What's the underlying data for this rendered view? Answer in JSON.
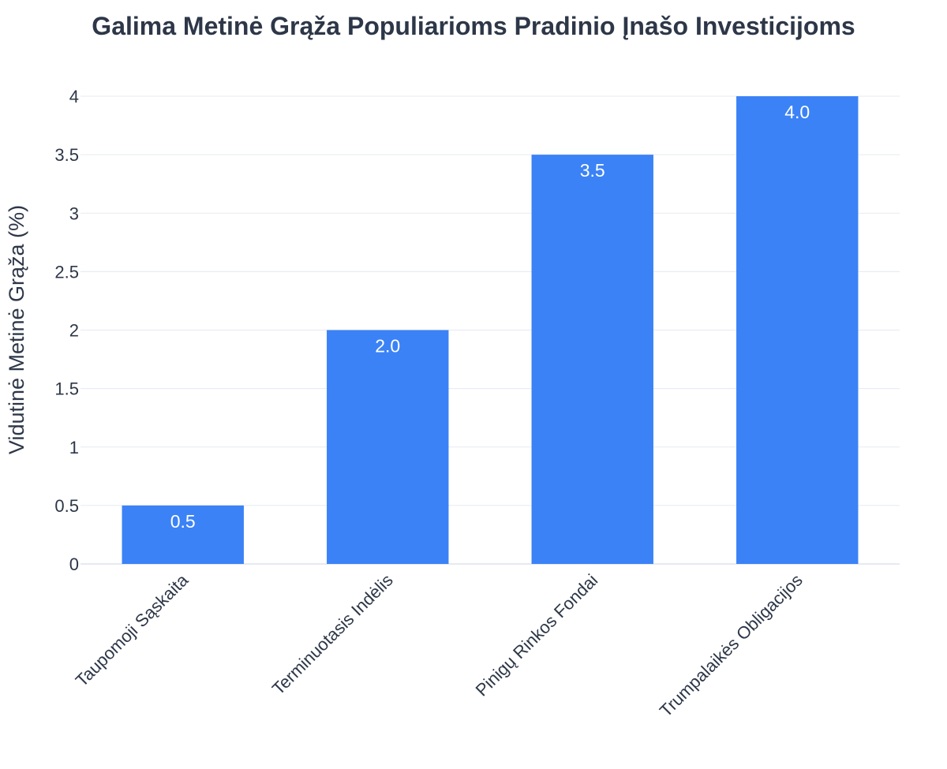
{
  "chart_data": {
    "type": "bar",
    "title": "Galima Metinė Grąža Populiarioms Pradinio Įnašo Investicijoms",
    "xlabel": "",
    "ylabel": "Vidutinė Metinė Grąža (%)",
    "categories": [
      "Taupomoji Sąskaita",
      "Terminuotasis Indėlis",
      "Pinigų Rinkos Fondai",
      "Trumpalaikės Obligacijos"
    ],
    "values": [
      0.5,
      2.0,
      3.5,
      4.0
    ],
    "data_labels": [
      "0.5",
      "2.0",
      "3.5",
      "4.0"
    ],
    "ylim": [
      0,
      4
    ],
    "yticks": [
      "0",
      "0.5",
      "1",
      "1.5",
      "2",
      "2.5",
      "3",
      "3.5",
      "4"
    ],
    "grid": true,
    "legend": "none",
    "colors": {
      "bar": "#3b82f6",
      "grid": "#e5eaf2",
      "text": "#2d3748"
    }
  }
}
